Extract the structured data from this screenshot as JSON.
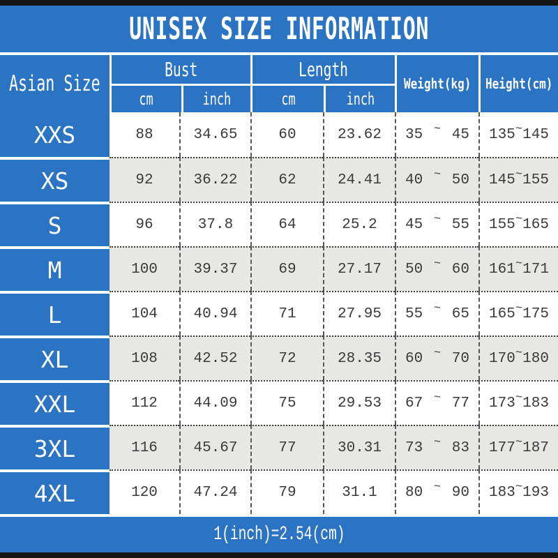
{
  "title": "UNISEX SIZE INFORMATION",
  "columns": {
    "asian_size": "Asian Size",
    "bust": "Bust",
    "length": "Length",
    "weight": "Weight(kg)",
    "height": "Height(cm)",
    "unit_cm": "cm",
    "unit_inch": "inch"
  },
  "tilde": "~",
  "rows": [
    {
      "size": "XXS",
      "bust_cm": "88",
      "bust_inch": "34.65",
      "length_cm": "60",
      "length_inch": "23.62",
      "weight_min": "35",
      "weight_max": "45",
      "height_min": "135",
      "height_max": "145"
    },
    {
      "size": "XS",
      "bust_cm": "92",
      "bust_inch": "36.22",
      "length_cm": "62",
      "length_inch": "24.41",
      "weight_min": "40",
      "weight_max": "50",
      "height_min": "145",
      "height_max": "155"
    },
    {
      "size": "S",
      "bust_cm": "96",
      "bust_inch": "37.8",
      "length_cm": "64",
      "length_inch": "25.2",
      "weight_min": "45",
      "weight_max": "55",
      "height_min": "155",
      "height_max": "165"
    },
    {
      "size": "M",
      "bust_cm": "100",
      "bust_inch": "39.37",
      "length_cm": "69",
      "length_inch": "27.17",
      "weight_min": "50",
      "weight_max": "60",
      "height_min": "161",
      "height_max": "171"
    },
    {
      "size": "L",
      "bust_cm": "104",
      "bust_inch": "40.94",
      "length_cm": "71",
      "length_inch": "27.95",
      "weight_min": "55",
      "weight_max": "65",
      "height_min": "165",
      "height_max": "175"
    },
    {
      "size": "XL",
      "bust_cm": "108",
      "bust_inch": "42.52",
      "length_cm": "72",
      "length_inch": "28.35",
      "weight_min": "60",
      "weight_max": "70",
      "height_min": "170",
      "height_max": "180"
    },
    {
      "size": "XXL",
      "bust_cm": "112",
      "bust_inch": "44.09",
      "length_cm": "75",
      "length_inch": "29.53",
      "weight_min": "67",
      "weight_max": "77",
      "height_min": "173",
      "height_max": "183"
    },
    {
      "size": "3XL",
      "bust_cm": "116",
      "bust_inch": "45.67",
      "length_cm": "77",
      "length_inch": "30.31",
      "weight_min": "73",
      "weight_max": "83",
      "height_min": "177",
      "height_max": "187"
    },
    {
      "size": "4XL",
      "bust_cm": "120",
      "bust_inch": "47.24",
      "length_cm": "79",
      "length_inch": "31.1",
      "weight_min": "80",
      "weight_max": "90",
      "height_min": "183",
      "height_max": "193"
    }
  ],
  "footer": "1(inch)=2.54(cm)",
  "colors": {
    "blue": "#2b73c3",
    "row_alt_gray": "#e7e7e5",
    "border_bar_black": "#161616",
    "data_text": "#3a3a3a",
    "header_text": "#ffffff"
  }
}
